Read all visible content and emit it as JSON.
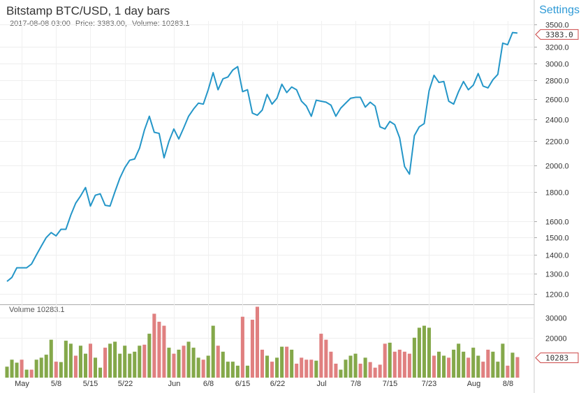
{
  "header": {
    "title": "Bitstamp BTC/USD, 1 day bars",
    "settings_label": "Settings",
    "info_date": "2017-08-08 03:00",
    "info_price": "Price: 3383.00,",
    "info_volume": "Volume: 10283.1"
  },
  "volume_panel": {
    "label": "Volume 10283.1"
  },
  "colors": {
    "line": "#2496c8",
    "up": "#84a84a",
    "down": "#e08080",
    "current_tag": "#cc4444"
  },
  "chart_data": [
    {
      "type": "line",
      "title": "Bitstamp BTC/USD, 1 day bars",
      "y_scale": "log",
      "ylim": [
        1150,
        3550
      ],
      "y_ticks": [
        "1200.0",
        "1300.0",
        "1400.0",
        "1500.0",
        "1600.0",
        "1800.0",
        "2000.0",
        "2200.0",
        "2400.0",
        "2600.0",
        "2800.0",
        "3000.0",
        "3200.0",
        "3500.0"
      ],
      "x_ticks": [
        {
          "label": "May",
          "index": 3
        },
        {
          "label": "5/8",
          "index": 10
        },
        {
          "label": "5/15",
          "index": 17
        },
        {
          "label": "5/22",
          "index": 24
        },
        {
          "label": "Jun",
          "index": 34
        },
        {
          "label": "6/8",
          "index": 41
        },
        {
          "label": "6/15",
          "index": 48
        },
        {
          "label": "6/22",
          "index": 55
        },
        {
          "label": "Jul",
          "index": 64
        },
        {
          "label": "7/8",
          "index": 71
        },
        {
          "label": "7/15",
          "index": 78
        },
        {
          "label": "7/23",
          "index": 86
        },
        {
          "label": "Aug",
          "index": 95
        },
        {
          "label": "8/8",
          "index": 102
        }
      ],
      "current_value": "3383.0",
      "values": [
        1260,
        1280,
        1330,
        1330,
        1330,
        1350,
        1400,
        1450,
        1500,
        1530,
        1510,
        1550,
        1550,
        1640,
        1720,
        1770,
        1830,
        1700,
        1775,
        1785,
        1705,
        1700,
        1800,
        1900,
        1980,
        2040,
        2050,
        2140,
        2300,
        2430,
        2280,
        2270,
        2060,
        2200,
        2310,
        2220,
        2320,
        2430,
        2500,
        2560,
        2550,
        2700,
        2890,
        2700,
        2820,
        2840,
        2920,
        2960,
        2680,
        2700,
        2460,
        2440,
        2490,
        2650,
        2550,
        2610,
        2760,
        2670,
        2730,
        2700,
        2580,
        2530,
        2430,
        2590,
        2580,
        2570,
        2540,
        2430,
        2510,
        2560,
        2610,
        2620,
        2620,
        2520,
        2570,
        2530,
        2330,
        2310,
        2380,
        2350,
        2230,
        1990,
        1930,
        2250,
        2330,
        2360,
        2690,
        2860,
        2780,
        2790,
        2580,
        2550,
        2680,
        2790,
        2700,
        2750,
        2880,
        2740,
        2720,
        2810,
        2870,
        3250,
        3230,
        3390,
        3383
      ]
    },
    {
      "type": "bar",
      "title": "Volume 10283.1",
      "ylim": [
        0,
        36000
      ],
      "y_ticks": [
        "20000",
        "30000"
      ],
      "current_value": "10283",
      "values": [
        5500,
        9000,
        7500,
        9000,
        4000,
        4000,
        9000,
        10000,
        11500,
        19000,
        8000,
        7800,
        18500,
        17000,
        11000,
        16000,
        12000,
        17000,
        10000,
        5000,
        15000,
        17000,
        18000,
        12000,
        16000,
        12000,
        13000,
        16000,
        16500,
        22000,
        32000,
        28000,
        26000,
        15000,
        12000,
        14000,
        16000,
        18000,
        15000,
        10000,
        9000,
        11000,
        26000,
        16000,
        13000,
        8000,
        8000,
        6000,
        30500,
        6000,
        29000,
        35500,
        14000,
        11000,
        8000,
        10000,
        15500,
        15500,
        14000,
        7000,
        10000,
        9000,
        9000,
        8500,
        22000,
        19000,
        13000,
        7000,
        4000,
        9000,
        11000,
        12000,
        7000,
        10000,
        7800,
        5000,
        6500,
        17000,
        17500,
        13000,
        14000,
        13000,
        12000,
        20000,
        25000,
        26000,
        25000,
        11000,
        13000,
        11000,
        10000,
        14000,
        17000,
        13000,
        10000,
        15000,
        11000,
        8000,
        14000,
        13000,
        8000,
        17000,
        6000,
        12500,
        10283
      ],
      "directions": [
        "up",
        "up",
        "up",
        "down",
        "up",
        "down",
        "up",
        "up",
        "up",
        "up",
        "down",
        "up",
        "up",
        "up",
        "down",
        "up",
        "up",
        "down",
        "up",
        "up",
        "down",
        "up",
        "up",
        "up",
        "up",
        "up",
        "up",
        "up",
        "down",
        "up",
        "down",
        "down",
        "down",
        "up",
        "down",
        "up",
        "down",
        "up",
        "up",
        "up",
        "down",
        "up",
        "up",
        "down",
        "up",
        "up",
        "up",
        "up",
        "down",
        "up",
        "down",
        "down",
        "down",
        "up",
        "down",
        "up",
        "up",
        "down",
        "up",
        "down",
        "down",
        "down",
        "down",
        "up",
        "down",
        "down",
        "down",
        "down",
        "up",
        "up",
        "up",
        "up",
        "down",
        "up",
        "down",
        "down",
        "down",
        "down",
        "up",
        "down",
        "down",
        "down",
        "down",
        "up",
        "up",
        "up",
        "up",
        "down",
        "up",
        "up",
        "down",
        "up",
        "up",
        "up",
        "down",
        "up",
        "up",
        "down",
        "down",
        "up",
        "up",
        "up",
        "down",
        "up",
        "down"
      ]
    }
  ]
}
